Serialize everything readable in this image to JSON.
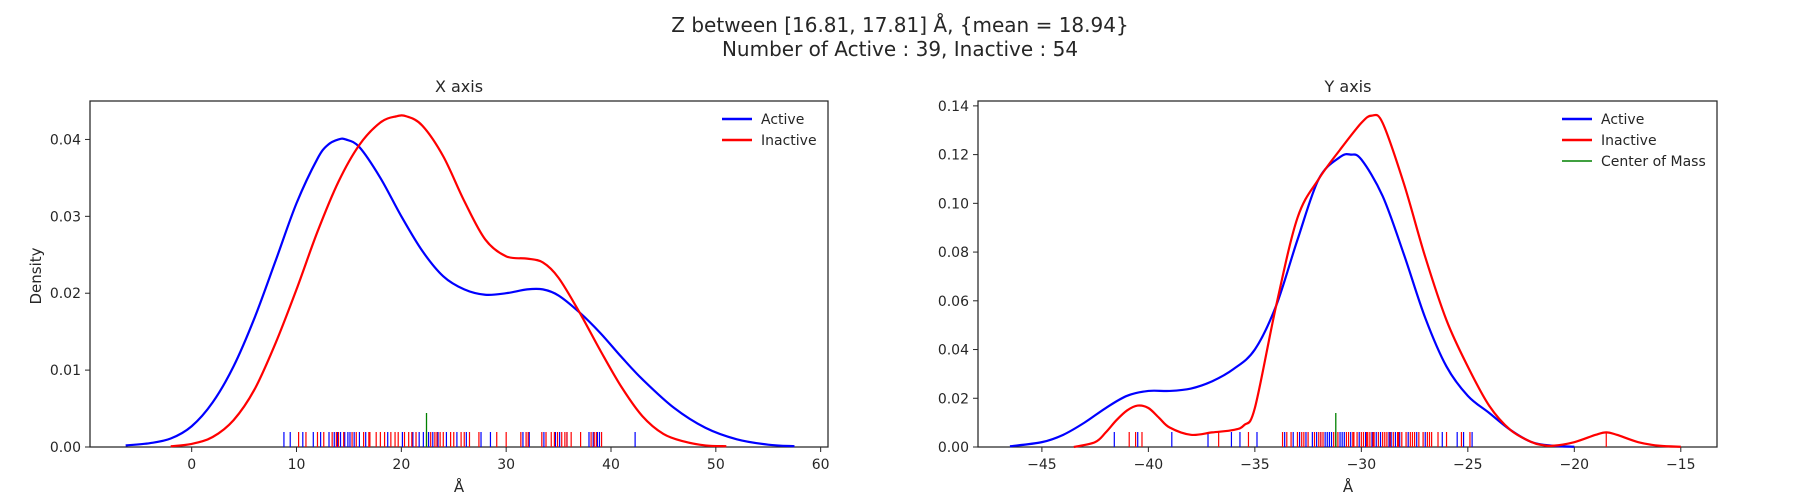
{
  "figure": {
    "title_line1": "Z between [16.81, 17.81] Å, {mean = 18.94}",
    "title_line2": "Number of Active : 39, Inactive : 54"
  },
  "colors": {
    "active": "#0000ff",
    "inactive": "#ff0000",
    "com": "#008000"
  },
  "chart_data": [
    {
      "type": "line",
      "title": "X axis",
      "xlabel": "Å",
      "ylabel": "Density",
      "xlim": [
        -9.7,
        60.7
      ],
      "ylim": [
        0,
        0.045
      ],
      "xticks": [
        0,
        10,
        20,
        30,
        40,
        50,
        60
      ],
      "yticks": [
        0.0,
        0.01,
        0.02,
        0.03,
        0.04
      ],
      "ytick_labels": [
        "0.00",
        "0.01",
        "0.02",
        "0.03",
        "0.04"
      ],
      "grid": false,
      "legend_position": "top-right",
      "series": [
        {
          "name": "Active",
          "color_key": "active",
          "x": [
            -6.3,
            -4,
            -2,
            0,
            2,
            4,
            6,
            8,
            10,
            12,
            13,
            14,
            14.7,
            16,
            18,
            20,
            22,
            24,
            26,
            28,
            30,
            32,
            33.5,
            35,
            37,
            39,
            41,
            43,
            46,
            49,
            52,
            55,
            57.5
          ],
          "y": [
            0.0002,
            0.0005,
            0.0011,
            0.0027,
            0.0058,
            0.0105,
            0.0168,
            0.0242,
            0.0317,
            0.0375,
            0.0393,
            0.04,
            0.04,
            0.039,
            0.035,
            0.03,
            0.0255,
            0.0222,
            0.0205,
            0.0198,
            0.02,
            0.0205,
            0.0205,
            0.0197,
            0.0175,
            0.0148,
            0.0117,
            0.0088,
            0.0051,
            0.0025,
            0.001,
            0.0003,
            0.0001
          ]
        },
        {
          "name": "Inactive",
          "color_key": "inactive",
          "x": [
            -2,
            0,
            2,
            4,
            6,
            8,
            10,
            12,
            14,
            16,
            18,
            19.5,
            20.5,
            22,
            24,
            26,
            28,
            30,
            32,
            33.5,
            35,
            37,
            39,
            41,
            43,
            45,
            47,
            49,
            51
          ],
          "y": [
            0.0001,
            0.0004,
            0.0013,
            0.0035,
            0.0075,
            0.0135,
            0.0205,
            0.028,
            0.0345,
            0.0393,
            0.0422,
            0.043,
            0.043,
            0.0418,
            0.0378,
            0.032,
            0.027,
            0.0248,
            0.0245,
            0.024,
            0.022,
            0.0175,
            0.0125,
            0.0078,
            0.004,
            0.0017,
            0.0007,
            0.0002,
            0.0001
          ]
        }
      ],
      "rug": {
        "active": [
          8.8,
          9.4,
          10.6,
          11.6,
          12.3,
          13.1,
          13.6,
          13.9,
          14.2,
          14.6,
          14.9,
          15.1,
          15.5,
          16.0,
          16.6,
          18.7,
          20.1,
          21.1,
          21.7,
          22.1,
          22.6,
          23.0,
          23.5,
          24.3,
          25.3,
          26.2,
          27.6,
          28.5,
          31.6,
          32.2,
          33.6,
          34.7,
          35.1,
          35.8,
          37.9,
          38.3,
          38.7,
          38.9,
          42.3
        ],
        "inactive": [
          10.2,
          10.9,
          12.0,
          12.6,
          13.4,
          13.8,
          14.0,
          14.5,
          15.3,
          15.7,
          16.4,
          17.0,
          17.6,
          18.0,
          18.4,
          19.0,
          19.4,
          19.7,
          20.3,
          20.7,
          21.0,
          21.4,
          22.4,
          22.8,
          23.2,
          23.7,
          24.0,
          24.7,
          25.0,
          25.7,
          26.5,
          27.4,
          29.1,
          30.0,
          31.4,
          32.1,
          33.4,
          33.8,
          34.3,
          34.6,
          34.9,
          35.3,
          35.6,
          35.8,
          36.2,
          37.1,
          38.1,
          38.4,
          38.6,
          39.1,
          23.4,
          16.9,
          31.9,
          26.0
        ],
        "center_of_mass": 22.4
      }
    },
    {
      "type": "line",
      "title": "Y axis",
      "xlabel": "Å",
      "ylabel": "",
      "xlim": [
        -48.0,
        -13.3
      ],
      "ylim": [
        0,
        0.142
      ],
      "xticks": [
        -45,
        -40,
        -35,
        -30,
        -25,
        -20,
        -15
      ],
      "xtick_labels": [
        "−45",
        "−40",
        "−35",
        "−30",
        "−25",
        "−20",
        "−15"
      ],
      "yticks": [
        0.0,
        0.02,
        0.04,
        0.06,
        0.08,
        0.1,
        0.12,
        0.14
      ],
      "ytick_labels": [
        "0.00",
        "0.02",
        "0.04",
        "0.06",
        "0.08",
        "0.10",
        "0.12",
        "0.14"
      ],
      "grid": false,
      "legend_position": "top-right",
      "series": [
        {
          "name": "Active",
          "color_key": "active",
          "x": [
            -46.5,
            -45,
            -44,
            -43,
            -42,
            -41,
            -40,
            -39,
            -38,
            -37,
            -36,
            -35,
            -34,
            -33,
            -32,
            -31,
            -30.5,
            -30,
            -29,
            -28,
            -27,
            -26,
            -25,
            -24,
            -23,
            -22,
            -21,
            -20
          ],
          "y": [
            0.0003,
            0.002,
            0.005,
            0.01,
            0.016,
            0.021,
            0.023,
            0.023,
            0.024,
            0.027,
            0.032,
            0.04,
            0.058,
            0.085,
            0.11,
            0.119,
            0.12,
            0.118,
            0.103,
            0.079,
            0.053,
            0.033,
            0.021,
            0.014,
            0.007,
            0.002,
            0.0005,
            0.0001
          ]
        },
        {
          "name": "Inactive",
          "color_key": "inactive",
          "x": [
            -43.5,
            -42.5,
            -42,
            -41.5,
            -41,
            -40.5,
            -40,
            -39.5,
            -39,
            -38,
            -37,
            -36,
            -35.5,
            -35,
            -34,
            -33,
            -32,
            -31,
            -30,
            -29.5,
            -29,
            -28,
            -27,
            -26,
            -25,
            -24,
            -23,
            -22,
            -21.5,
            -21,
            -20,
            -19,
            -18.5,
            -18,
            -17,
            -16,
            -15
          ],
          "y": [
            0,
            0.002,
            0.006,
            0.011,
            0.015,
            0.017,
            0.016,
            0.012,
            0.008,
            0.005,
            0.006,
            0.007,
            0.009,
            0.016,
            0.058,
            0.094,
            0.11,
            0.122,
            0.133,
            0.136,
            0.133,
            0.108,
            0.078,
            0.052,
            0.033,
            0.017,
            0.007,
            0.002,
            0.0008,
            0.0005,
            0.002,
            0.005,
            0.006,
            0.005,
            0.002,
            0.0005,
            0.0001
          ]
        }
      ],
      "legend_extra": {
        "name": "Center of Mass",
        "color_key": "com"
      },
      "rug": {
        "active": [
          -41.6,
          -40.5,
          -38.9,
          -37.2,
          -36.1,
          -35.7,
          -34.9,
          -33.6,
          -33.2,
          -32.9,
          -32.6,
          -32.3,
          -32.1,
          -31.9,
          -31.7,
          -31.6,
          -31.4,
          -31.2,
          -31.0,
          -30.8,
          -30.5,
          -30.1,
          -29.8,
          -29.5,
          -29.1,
          -28.7,
          -28.6,
          -28.2,
          -27.8,
          -27.4,
          -27.0,
          -26.2,
          -25.5,
          -25.2,
          -24.8,
          -31.5,
          -30.9,
          -29.3,
          -28.4
        ],
        "inactive": [
          -40.9,
          -40.6,
          -40.3,
          -36.7,
          -35.3,
          -33.5,
          -33.3,
          -33.0,
          -32.8,
          -32.5,
          -32.2,
          -32.0,
          -31.8,
          -31.3,
          -31.1,
          -30.7,
          -30.4,
          -30.2,
          -30.0,
          -29.9,
          -29.7,
          -29.6,
          -29.4,
          -29.2,
          -29.0,
          -28.9,
          -28.8,
          -28.5,
          -28.3,
          -28.1,
          -27.9,
          -27.7,
          -27.5,
          -27.3,
          -27.1,
          -26.9,
          -26.7,
          -26.4,
          -26.0,
          -25.3,
          -24.9,
          -18.5,
          -33.7,
          -31.9,
          -30.6,
          -29.45,
          -28.65,
          -27.6,
          -26.8,
          -30.35,
          -29.75,
          -28.25,
          -32.7,
          -31.2
        ],
        "center_of_mass": -31.2
      }
    }
  ]
}
